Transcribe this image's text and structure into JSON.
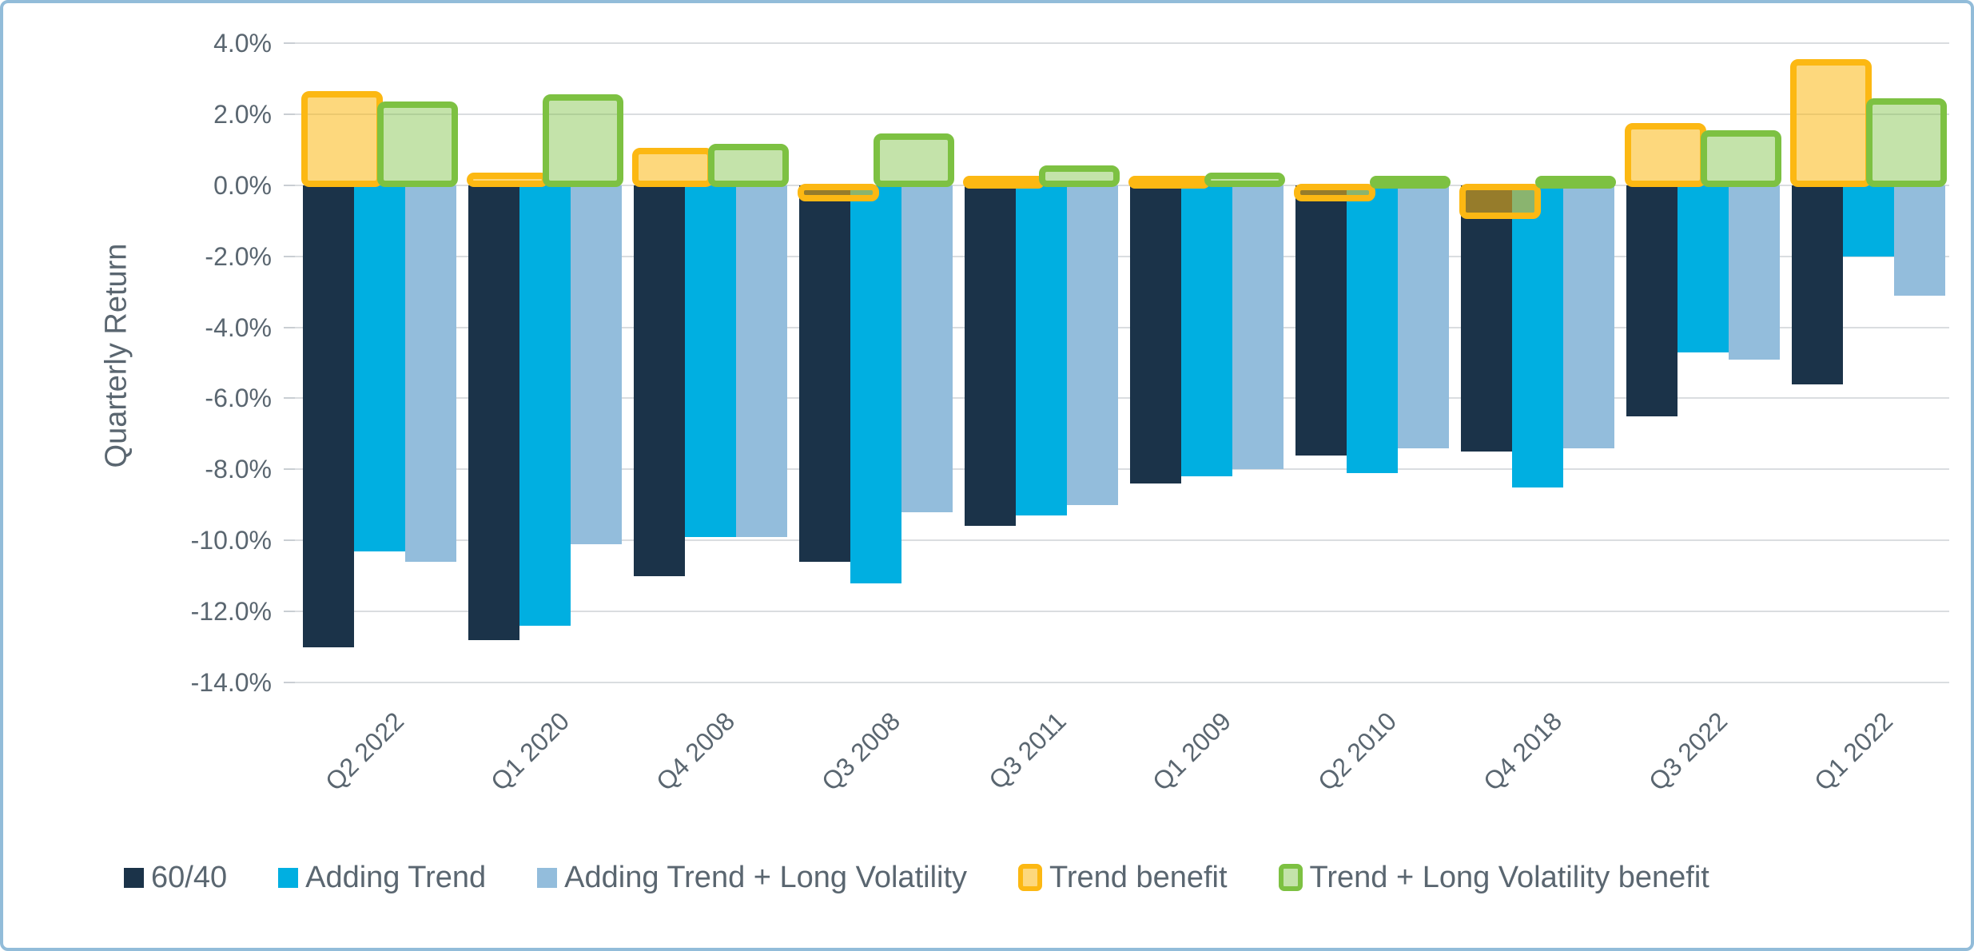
{
  "colors": {
    "frame_border": "#92bcd9",
    "gridline": "#dadde0",
    "axis_text": "#5a6670"
  },
  "chart_data": {
    "type": "bar",
    "title": "",
    "ylabel": "Quarterly Return",
    "xlabel": "",
    "ylim": [
      -14,
      4
    ],
    "ytick_step": 2,
    "yticks": [
      "4.0%",
      "2.0%",
      "0.0%",
      "-2.0%",
      "-4.0%",
      "-6.0%",
      "-8.0%",
      "-10.0%",
      "-12.0%",
      "-14.0%"
    ],
    "grid": true,
    "legend_position": "bottom",
    "categories": [
      "Q2 2022",
      "Q1 2020",
      "Q4 2008",
      "Q3 2008",
      "Q3 2011",
      "Q1 2009",
      "Q2 2010",
      "Q4 2018",
      "Q3 2022",
      "Q1 2022"
    ],
    "series": [
      {
        "name": "60/40",
        "type": "column",
        "color": "#1b3349",
        "values": [
          -13.0,
          -12.8,
          -11.0,
          -10.6,
          -9.6,
          -8.4,
          -7.6,
          -7.5,
          -6.5,
          -5.6
        ]
      },
      {
        "name": "Adding Trend",
        "type": "column",
        "color": "#00afe1",
        "values": [
          -10.3,
          -12.4,
          -9.9,
          -11.2,
          -9.3,
          -8.2,
          -8.1,
          -8.5,
          -4.7,
          -2.0
        ]
      },
      {
        "name": "Adding Trend + Long Volatility",
        "type": "column",
        "color": "#93bddc",
        "values": [
          -10.6,
          -10.1,
          -9.9,
          -9.2,
          -9.0,
          -8.0,
          -7.4,
          -7.4,
          -4.9,
          -3.1
        ]
      },
      {
        "name": "Trend benefit",
        "type": "outlined-overlay",
        "border_color": "#fcb813",
        "fill_color": "rgba(252,184,19,0.55)",
        "values": [
          2.7,
          0.4,
          1.1,
          -0.5,
          0.3,
          0.2,
          -0.5,
          -1.0,
          1.8,
          3.6
        ]
      },
      {
        "name": "Trend + Long Volatility benefit",
        "type": "outlined-overlay",
        "border_color": "#7dc142",
        "fill_color": "rgba(124,193,66,0.45)",
        "values": [
          2.4,
          2.6,
          1.2,
          1.5,
          0.6,
          0.4,
          0.3,
          0.1,
          1.6,
          2.5
        ]
      }
    ]
  }
}
